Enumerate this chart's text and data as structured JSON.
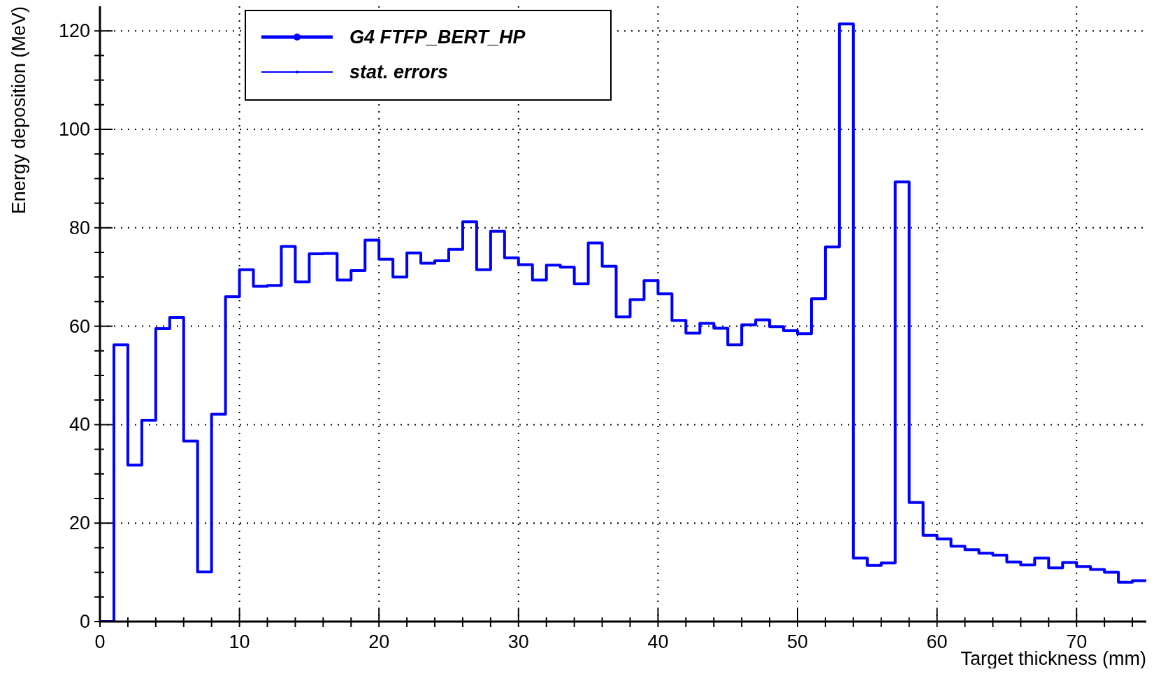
{
  "chart_data": {
    "type": "histogram",
    "xlabel": "Target thickness (mm)",
    "ylabel": "Energy deposition (MeV)",
    "bins": [
      0,
      1,
      2,
      3,
      4,
      5,
      6,
      7,
      8,
      9,
      10,
      11,
      12,
      13,
      14,
      15,
      16,
      17,
      18,
      19,
      20,
      21,
      22,
      23,
      24,
      25,
      26,
      27,
      28,
      29,
      30,
      31,
      32,
      33,
      34,
      35,
      36,
      37,
      38,
      39,
      40,
      41,
      42,
      43,
      44,
      45,
      46,
      47,
      48,
      49,
      50,
      51,
      52,
      53,
      54,
      55,
      56,
      57,
      58,
      59,
      60,
      61,
      62,
      63,
      64,
      65,
      66,
      67,
      68,
      69,
      70,
      71,
      72,
      73,
      74,
      75
    ],
    "series": [
      {
        "name": "G4 FTFP_BERT_HP",
        "color": "#0000ff",
        "values": [
          0,
          56.2,
          31.8,
          40.9,
          59.5,
          61.8,
          36.7,
          10.1,
          42.1,
          66.0,
          71.5,
          68.1,
          68.3,
          76.2,
          69.0,
          74.7,
          74.8,
          69.4,
          71.3,
          77.5,
          73.6,
          70.0,
          74.9,
          72.8,
          73.3,
          75.6,
          81.2,
          71.5,
          79.3,
          73.9,
          72.5,
          69.4,
          72.4,
          72.0,
          68.6,
          76.9,
          72.2,
          61.9,
          65.4,
          69.3,
          66.6,
          61.2,
          58.6,
          60.6,
          59.6,
          56.2,
          60.3,
          61.3,
          59.9,
          59.1,
          58.5,
          65.6,
          76.1,
          121.4,
          12.9,
          11.4,
          11.9,
          89.3,
          24.2,
          17.5,
          16.8,
          15.3,
          14.6,
          13.9,
          13.5,
          12.1,
          11.5,
          12.9,
          10.9,
          12.0,
          11.2,
          10.6,
          10.0,
          8.0,
          8.3
        ]
      }
    ],
    "annotations": [
      "stat. errors"
    ],
    "xlim": [
      0,
      75
    ],
    "xticks": [
      0,
      {
        "value": 2,
        "label": null
      },
      {
        "value": 4,
        "label": null
      },
      {
        "value": 6,
        "label": null
      },
      {
        "value": 8,
        "label": null
      },
      10,
      {
        "value": 12,
        "label": null
      },
      {
        "value": 14,
        "label": null
      },
      {
        "value": 16,
        "label": null
      },
      {
        "value": 18,
        "label": null
      },
      20,
      {
        "value": 22,
        "label": null
      },
      {
        "value": 24,
        "label": null
      },
      {
        "value": 26,
        "label": null
      },
      {
        "value": 28,
        "label": null
      },
      30,
      {
        "value": 32,
        "label": null
      },
      {
        "value": 34,
        "label": null
      },
      {
        "value": 36,
        "label": null
      },
      {
        "value": 38,
        "label": null
      },
      40,
      {
        "value": 42,
        "label": null
      },
      {
        "value": 44,
        "label": null
      },
      {
        "value": 46,
        "label": null
      },
      {
        "value": 48,
        "label": null
      },
      50,
      {
        "value": 52,
        "label": null
      },
      {
        "value": 54,
        "label": null
      },
      {
        "value": 56,
        "label": null
      },
      {
        "value": 58,
        "label": null
      },
      60,
      {
        "value": 62,
        "label": null
      },
      {
        "value": 64,
        "label": null
      },
      {
        "value": 66,
        "label": null
      },
      {
        "value": 68,
        "label": null
      },
      70,
      {
        "value": 72,
        "label": null
      },
      {
        "value": 74,
        "label": null
      }
    ],
    "ylim": [
      0,
      125
    ],
    "yticks": [
      0,
      {
        "value": 5,
        "label": null
      },
      {
        "value": 10,
        "label": null
      },
      {
        "value": 15,
        "label": null
      },
      20,
      {
        "value": 25,
        "label": null
      },
      {
        "value": 30,
        "label": null
      },
      {
        "value": 35,
        "label": null
      },
      40,
      {
        "value": 45,
        "label": null
      },
      {
        "value": 50,
        "label": null
      },
      {
        "value": 55,
        "label": null
      },
      60,
      {
        "value": 65,
        "label": null
      },
      {
        "value": 70,
        "label": null
      },
      {
        "value": 75,
        "label": null
      },
      80,
      {
        "value": 85,
        "label": null
      },
      {
        "value": 90,
        "label": null
      },
      {
        "value": 95,
        "label": null
      },
      100,
      {
        "value": 105,
        "label": null
      },
      {
        "value": 110,
        "label": null
      },
      {
        "value": 115,
        "label": null
      },
      120
    ],
    "grid": true,
    "legend": "top",
    "marker": "none",
    "line_style": "solid"
  }
}
